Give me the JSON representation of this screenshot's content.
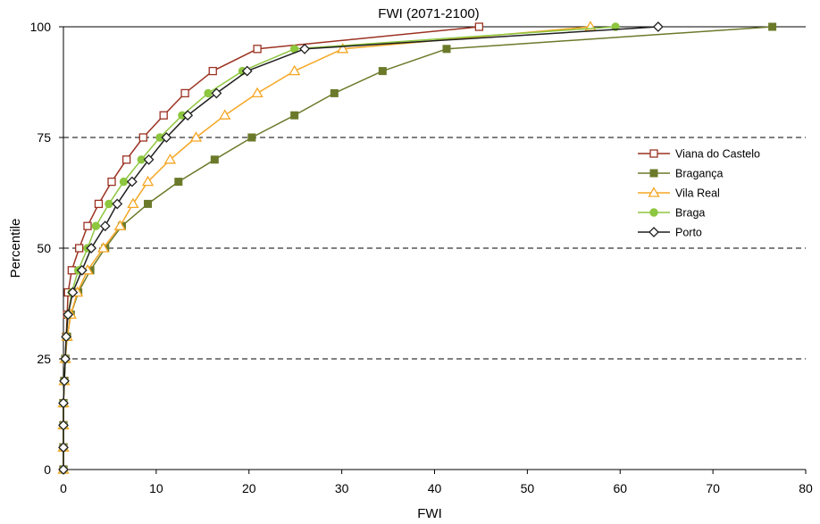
{
  "chart_data": {
    "type": "line",
    "title": "FWI (2071-2100)",
    "xlabel": "FWI",
    "ylabel": "Percentile",
    "xlim": [
      0,
      80
    ],
    "ylim": [
      0,
      100
    ],
    "xticks": [
      "0",
      "10",
      "20",
      "30",
      "40",
      "50",
      "60",
      "70",
      "80"
    ],
    "yticks": [
      "0",
      "25",
      "50",
      "75",
      "100"
    ],
    "grid": "horizontal dashed at 25, 50, 75",
    "legend_position": "right",
    "y": [
      0,
      5,
      10,
      15,
      20,
      25,
      30,
      35,
      40,
      45,
      50,
      55,
      60,
      65,
      70,
      75,
      80,
      85,
      90,
      95,
      100
    ],
    "series": [
      {
        "name": "Viana do Castelo",
        "color": "#9b3222",
        "marker": "open-square",
        "x": [
          0,
          0,
          0,
          0,
          0.1,
          0.2,
          0.3,
          0.4,
          0.5,
          0.9,
          1.7,
          2.6,
          3.8,
          5.2,
          6.8,
          8.6,
          10.8,
          13.1,
          16.1,
          20.9,
          44.8
        ]
      },
      {
        "name": "Bragança",
        "color": "#6b7a2a",
        "marker": "filled-square",
        "x": [
          0,
          0,
          0,
          0,
          0.1,
          0.2,
          0.4,
          0.8,
          1.6,
          2.9,
          4.5,
          6.3,
          9.1,
          12.4,
          16.3,
          20.3,
          24.9,
          29.2,
          34.4,
          41.3,
          76.4
        ]
      },
      {
        "name": "Vila Real",
        "color": "#f5a623",
        "marker": "open-triangle",
        "x": [
          0,
          0,
          0,
          0,
          0.1,
          0.2,
          0.4,
          0.8,
          1.5,
          2.6,
          4.3,
          6.1,
          7.5,
          9.1,
          11.5,
          14.3,
          17.4,
          20.9,
          24.9,
          30.1,
          56.8
        ]
      },
      {
        "name": "Braga",
        "color": "#8dc63f",
        "marker": "filled-circle",
        "x": [
          0,
          0,
          0,
          0,
          0.1,
          0.2,
          0.3,
          0.5,
          0.9,
          1.6,
          2.6,
          3.5,
          4.9,
          6.5,
          8.4,
          10.4,
          12.8,
          15.6,
          19.3,
          24.9,
          59.5
        ]
      },
      {
        "name": "Porto",
        "color": "#1f1f1f",
        "marker": "open-diamond",
        "x": [
          0,
          0,
          0,
          0,
          0.1,
          0.2,
          0.3,
          0.5,
          1.0,
          2.0,
          3.0,
          4.5,
          5.8,
          7.4,
          9.2,
          11.1,
          13.4,
          16.5,
          19.8,
          26.0,
          64.1
        ]
      }
    ]
  }
}
